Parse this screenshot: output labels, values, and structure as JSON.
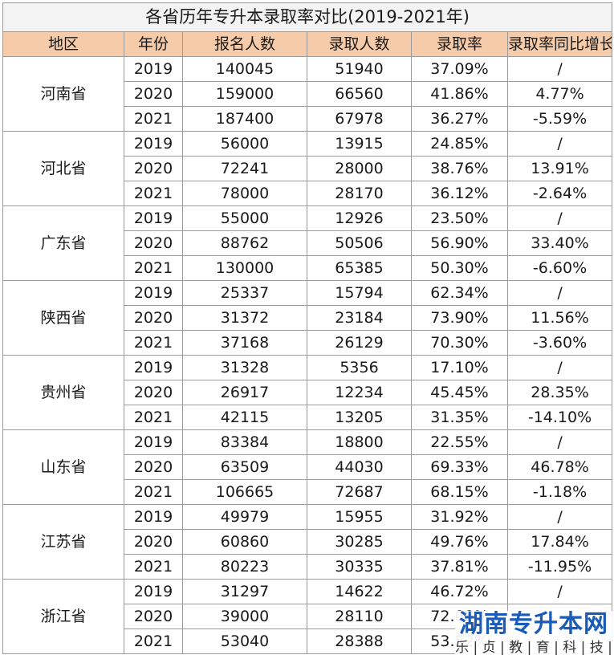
{
  "title": "各省历年专升本录取率对比(2019-2021年)",
  "headers": [
    "地区",
    "年份",
    "报名人数",
    "录取人数",
    "录取率",
    "录取率同比增长"
  ],
  "provinces": [
    {
      "name": "河南省",
      "rows": [
        [
          "2019",
          "140045",
          "51940",
          "37.09%",
          "/"
        ],
        [
          "2020",
          "159000",
          "66560",
          "41.86%",
          "4.77%"
        ],
        [
          "2021",
          "187400",
          "67978",
          "36.27%",
          "-5.59%"
        ]
      ]
    },
    {
      "name": "河北省",
      "rows": [
        [
          "2019",
          "56000",
          "13915",
          "24.85%",
          "/"
        ],
        [
          "2020",
          "72241",
          "28000",
          "38.76%",
          "13.91%"
        ],
        [
          "2021",
          "78000",
          "28170",
          "36.12%",
          "-2.64%"
        ]
      ]
    },
    {
      "name": "广东省",
      "rows": [
        [
          "2019",
          "55000",
          "12926",
          "23.50%",
          "/"
        ],
        [
          "2020",
          "88762",
          "50506",
          "56.90%",
          "33.40%"
        ],
        [
          "2021",
          "130000",
          "65385",
          "50.30%",
          "-6.60%"
        ]
      ]
    },
    {
      "name": "陕西省",
      "rows": [
        [
          "2019",
          "25337",
          "15794",
          "62.34%",
          "/"
        ],
        [
          "2020",
          "31372",
          "23184",
          "73.90%",
          "11.56%"
        ],
        [
          "2021",
          "37168",
          "26129",
          "70.30%",
          "-3.60%"
        ]
      ]
    },
    {
      "name": "贵州省",
      "rows": [
        [
          "2019",
          "31328",
          "5356",
          "17.10%",
          "/"
        ],
        [
          "2020",
          "26917",
          "12234",
          "45.45%",
          "28.35%"
        ],
        [
          "2021",
          "42115",
          "13205",
          "31.35%",
          "-14.10%"
        ]
      ]
    },
    {
      "name": "山东省",
      "rows": [
        [
          "2019",
          "83384",
          "18800",
          "22.55%",
          "/"
        ],
        [
          "2020",
          "63509",
          "44030",
          "69.33%",
          "46.78%"
        ],
        [
          "2021",
          "106665",
          "72687",
          "68.15%",
          "-1.18%"
        ]
      ]
    },
    {
      "name": "江苏省",
      "rows": [
        [
          "2019",
          "49979",
          "15955",
          "31.92%",
          "/"
        ],
        [
          "2020",
          "60860",
          "30285",
          "49.76%",
          "17.84%"
        ],
        [
          "2021",
          "80223",
          "30335",
          "37.81%",
          "-11.95%"
        ]
      ]
    },
    {
      "name": "浙江省",
      "rows": [
        [
          "2019",
          "31297",
          "14622",
          "46.72%",
          "/"
        ],
        [
          "2020",
          "39000",
          "28110",
          "72.08%",
          ""
        ],
        [
          "2021",
          "53040",
          "28388",
          "53.52%",
          ""
        ]
      ]
    }
  ],
  "watermark": {
    "main": "湖南专升本网",
    "sub": "乐 | 贞 | 教 | 育 | 科 | 技 |"
  }
}
